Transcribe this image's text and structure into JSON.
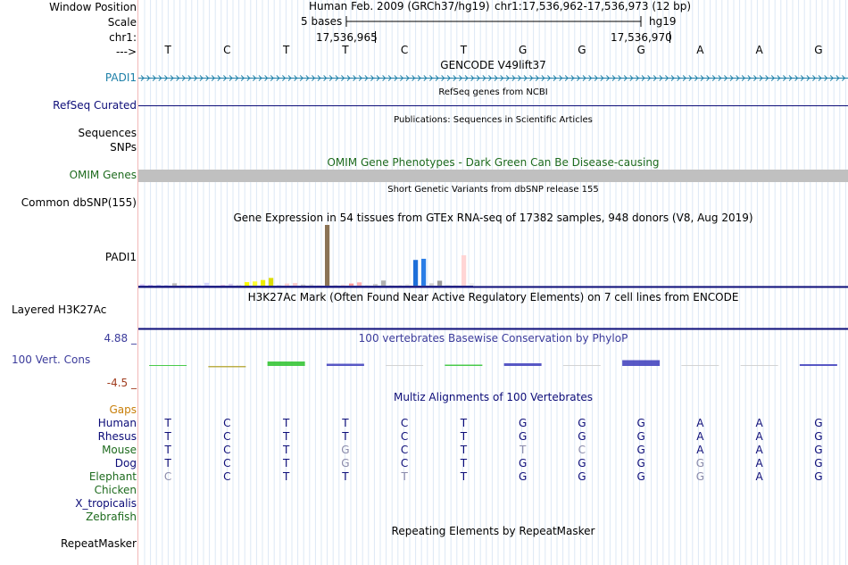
{
  "header": {
    "window_position_label": "Window Position",
    "scale_label": "Scale",
    "chr_label": "chr1:",
    "arrow_label": "--->",
    "assembly": "Human Feb. 2009 (GRCh37/hg19)",
    "position": "chr1:17,536,962-17,536,973 (12 bp)",
    "scale_text": "5 bases",
    "scale_db": "hg19",
    "coord_left": "17,536,965",
    "coord_right": "17,536,970"
  },
  "sequence": [
    "T",
    "C",
    "T",
    "T",
    "C",
    "T",
    "G",
    "G",
    "G",
    "A",
    "A",
    "G"
  ],
  "tracks": {
    "gencode": {
      "title": "GENCODE V49lift37",
      "label": "PADI1",
      "color": "#1c7fa8"
    },
    "refseq": {
      "title": "RefSeq genes from NCBI",
      "label": "RefSeq Curated",
      "color": "#0c0c78"
    },
    "publications": {
      "title": "Publications: Sequences in Scientific Articles",
      "label_1": "Sequences",
      "label_2": "SNPs"
    },
    "omim": {
      "title": "OMIM Gene Phenotypes - Dark Green Can Be Disease-causing",
      "label": "OMIM Genes",
      "color": "#1e6b1e"
    },
    "dbsnp": {
      "title": "Short Genetic Variants from dbSNP release 155",
      "label": "Common dbSNP(155)"
    },
    "gtex": {
      "title": "Gene Expression in 54 tissues from GTEx RNA-seq of 17382 samples, 948 donors (V8, Aug 2019)",
      "label": "PADI1",
      "bars": [
        {
          "value": 0.6,
          "color": "#d9c7ff"
        },
        {
          "value": 0.3,
          "color": "#d9c7ff"
        },
        {
          "value": 0.4,
          "color": "#ccccff"
        },
        {
          "value": 0.3,
          "color": "#ddddff"
        },
        {
          "value": 1.0,
          "color": "#bbbbbb"
        },
        {
          "value": 0.5,
          "color": "#ffe0e0"
        },
        {
          "value": 0.2,
          "color": "#ffe0e0"
        },
        {
          "value": 0.6,
          "color": "#e8e8ff"
        },
        {
          "value": 1.2,
          "color": "#d5d5ff"
        },
        {
          "value": 0.2,
          "color": "#ffffff"
        },
        {
          "value": 0.4,
          "color": "#e8c8e8"
        },
        {
          "value": 0.8,
          "color": "#d8d0f0"
        },
        {
          "value": 0.5,
          "color": "#e6e6e6"
        },
        {
          "value": 1.5,
          "color": "#ffff00"
        },
        {
          "value": 1.8,
          "color": "#ffff33"
        },
        {
          "value": 2.4,
          "color": "#eeee00"
        },
        {
          "value": 3.3,
          "color": "#dddd00"
        },
        {
          "value": 0.4,
          "color": "#e6e6e6"
        },
        {
          "value": 0.9,
          "color": "#ffd0d0"
        },
        {
          "value": 1.1,
          "color": "#ffcccc"
        },
        {
          "value": 0.5,
          "color": "#cccccc"
        },
        {
          "value": 0.6,
          "color": "#dddddd"
        },
        {
          "value": 0.5,
          "color": "#ffeeee"
        },
        {
          "value": 26.0,
          "color": "#8b7355"
        },
        {
          "value": 0.5,
          "color": "#e8e8e8"
        },
        {
          "value": 0.5,
          "color": "#ffe0e0"
        },
        {
          "value": 0.9,
          "color": "#ff9999"
        },
        {
          "value": 1.4,
          "color": "#ffb0b0"
        },
        {
          "value": 0.5,
          "color": "#eeeeee"
        },
        {
          "value": 0.7,
          "color": "#c8c8c8"
        },
        {
          "value": 2.2,
          "color": "#b0b0b0"
        },
        {
          "value": 0.4,
          "color": "#eeeeee"
        },
        {
          "value": 0.5,
          "color": "#f0f0f0"
        },
        {
          "value": 0.7,
          "color": "#e8e8e8"
        },
        {
          "value": 11.0,
          "color": "#1e6fd9"
        },
        {
          "value": 11.5,
          "color": "#2a7de6"
        },
        {
          "value": 1.0,
          "color": "#d0d0d0"
        },
        {
          "value": 2.1,
          "color": "#999999"
        },
        {
          "value": 0.6,
          "color": "#eeeeee"
        },
        {
          "value": 0.7,
          "color": "#f0f0f0"
        },
        {
          "value": 13.0,
          "color": "#ffd5d5"
        },
        {
          "value": 1.0,
          "color": "#eeeeee"
        }
      ]
    },
    "h3k27ac": {
      "title": "H3K27Ac Mark (Often Found Near Active Regulatory Elements) on 7 cell lines from ENCODE",
      "label": "Layered H3K27Ac"
    },
    "phylop": {
      "title": "100 vertebrates Basewise Conservation by PhyloP",
      "label": "100 Vert. Cons",
      "max": "4.88 _",
      "min": "-4.5 _",
      "title_color": "#3b3b9b",
      "max_color": "#3b3b9b",
      "min_color": "#a03c1e",
      "scores": [
        0.2,
        -0.3,
        1.0,
        0.5,
        0.0,
        0.3,
        0.6,
        0.0,
        1.3,
        0.0,
        0.0,
        0.4
      ],
      "colors": [
        "#2bc22b",
        "#b2a22a",
        "#2bc22b",
        "#3b3bbb",
        "#cccccc",
        "#2bc22b",
        "#3b3bbb",
        "#cccccc",
        "#3b3bbb",
        "#cccccc",
        "#cccccc",
        "#3b3bbb"
      ]
    },
    "multiz": {
      "title": "Multiz Alignments of 100 Vertebrates",
      "gaps_label": "Gaps",
      "gaps_color": "#c87f0a",
      "rows": [
        {
          "name": "Human",
          "color": "#0c0c78",
          "bases": [
            "T",
            "C",
            "T",
            "T",
            "C",
            "T",
            "G",
            "G",
            "G",
            "A",
            "A",
            "G"
          ],
          "faint": []
        },
        {
          "name": "Rhesus",
          "color": "#0c0c78",
          "bases": [
            "T",
            "C",
            "T",
            "T",
            "C",
            "T",
            "G",
            "G",
            "G",
            "A",
            "A",
            "G"
          ],
          "faint": []
        },
        {
          "name": "Mouse",
          "color": "#1e6b1e",
          "bases": [
            "T",
            "C",
            "T",
            "G",
            "C",
            "T",
            "T",
            "C",
            "G",
            "A",
            "A",
            "G"
          ],
          "faint": [
            3,
            6,
            7
          ]
        },
        {
          "name": "Dog",
          "color": "#0c0c78",
          "bases": [
            "T",
            "C",
            "T",
            "G",
            "C",
            "T",
            "G",
            "G",
            "G",
            "G",
            "A",
            "G"
          ],
          "faint": [
            3,
            9
          ]
        },
        {
          "name": "Elephant",
          "color": "#1e6b1e",
          "bases": [
            "C",
            "C",
            "T",
            "T",
            "T",
            "T",
            "G",
            "G",
            "G",
            "G",
            "A",
            "G"
          ],
          "faint": [
            0,
            4,
            9
          ]
        },
        {
          "name": "Chicken",
          "color": "#1e6b1e",
          "bases": [],
          "faint": []
        },
        {
          "name": "X_tropicalis",
          "color": "#0c0c78",
          "bases": [],
          "faint": []
        },
        {
          "name": "Zebrafish",
          "color": "#1e6b1e",
          "bases": [],
          "faint": []
        }
      ]
    },
    "repeatmasker": {
      "title": "Repeating Elements by RepeatMasker",
      "label": "RepeatMasker"
    }
  },
  "colors": {
    "grid_line": "#dde8f5",
    "separator": "#0c0c78",
    "left_edge": "#f2b8b8",
    "omim_bar": "#c0c0c0",
    "faint_base": "#8a8aaa"
  }
}
